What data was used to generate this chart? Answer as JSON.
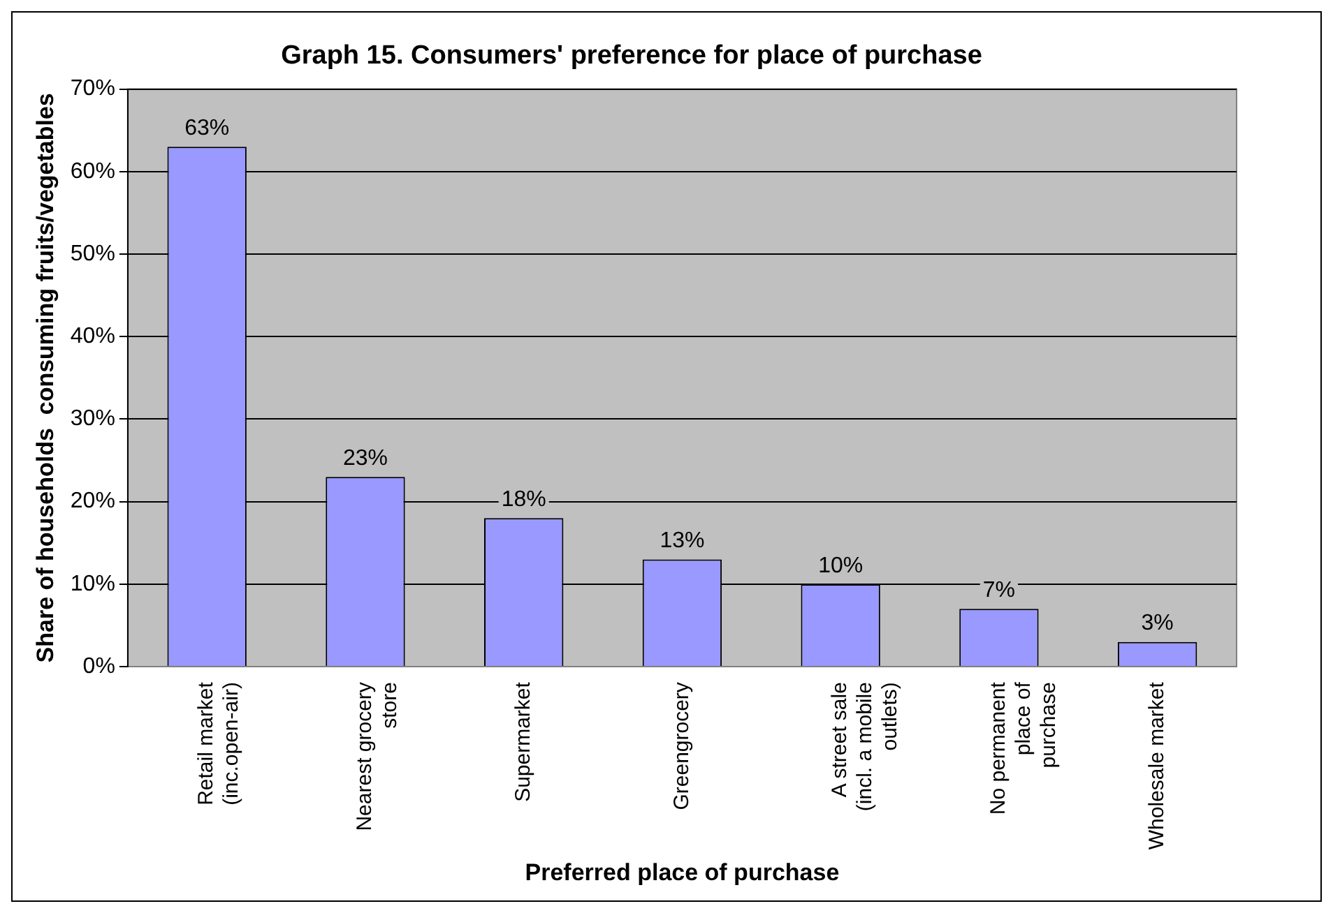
{
  "chart_data": {
    "type": "bar",
    "title": "Graph 15. Consumers' preference for place of purchase",
    "xlabel": "Preferred place of purchase",
    "ylabel": "Share of households  consuming fruits/vegetables",
    "categories": [
      "Retail market (inc.open-air)",
      "Nearest grocery store",
      "Supermarket",
      "Greengrocery",
      "A street sale (incl. a mobile outlets)",
      "No permanent place of purchase",
      "Wholesale market"
    ],
    "values": [
      63,
      23,
      18,
      13,
      10,
      7,
      3
    ],
    "color": "#9999ff",
    "value_labels": [
      "63%",
      "23%",
      "18%",
      "13%",
      "10%",
      "7%",
      "3%"
    ],
    "ylim": [
      0,
      70
    ],
    "yticks": [
      {
        "value": 0,
        "label": "0%"
      },
      {
        "value": 10,
        "label": "10%"
      },
      {
        "value": 20,
        "label": "20%"
      },
      {
        "value": 30,
        "label": "30%"
      },
      {
        "value": 40,
        "label": "40%"
      },
      {
        "value": 50,
        "label": "50%"
      },
      {
        "value": 60,
        "label": "60%"
      },
      {
        "value": 70,
        "label": "70%"
      }
    ],
    "grid": "y",
    "legend": false
  }
}
